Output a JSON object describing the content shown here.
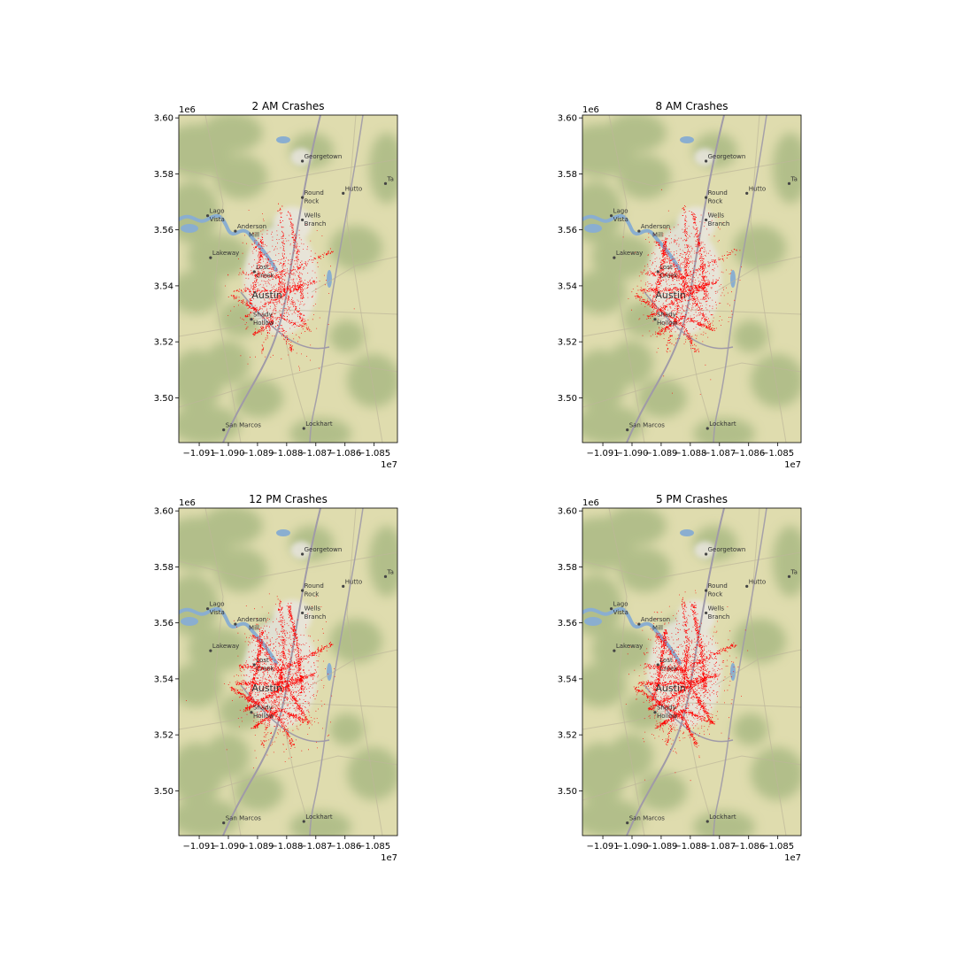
{
  "panels": [
    {
      "title": "2 AM Crashes",
      "density": 0.55
    },
    {
      "title": "8 AM Crashes",
      "density": 0.8
    },
    {
      "title": "12 PM Crashes",
      "density": 1.0
    },
    {
      "title": "5 PM Crashes",
      "density": 1.05
    }
  ],
  "x_axis": {
    "ticks": [
      "−1.091",
      "−1.090",
      "−1.089",
      "−1.088",
      "−1.087",
      "−1.086",
      "−1.085"
    ],
    "tick_values": [
      -10910000,
      -10900000,
      -10890000,
      -10880000,
      -10870000,
      -10860000,
      -10850000
    ],
    "range": [
      -10917000,
      -10842000
    ],
    "offset": "1e7"
  },
  "y_axis": {
    "ticks": [
      "3.60",
      "3.58",
      "3.56",
      "3.54",
      "3.52",
      "3.50"
    ],
    "tick_values": [
      3600000,
      3580000,
      3560000,
      3540000,
      3520000,
      3500000
    ],
    "range": [
      3484000,
      3601000
    ],
    "offset": "1e6"
  },
  "places": [
    {
      "name": "Georgetown",
      "x": -10874000,
      "y": 3585500
    },
    {
      "name": "Round",
      "x": -10874000,
      "y": 3572500
    },
    {
      "name": "Rock",
      "x": -10874000,
      "y": 3569500
    },
    {
      "name": "Hutto",
      "x": -10860000,
      "y": 3574000
    },
    {
      "name": "Ta",
      "x": -10845500,
      "y": 3577500
    },
    {
      "name": "Lago",
      "x": -10906500,
      "y": 3566000
    },
    {
      "name": "Vista",
      "x": -10906500,
      "y": 3563000
    },
    {
      "name": "Wells",
      "x": -10874000,
      "y": 3564500
    },
    {
      "name": "Branch",
      "x": -10874000,
      "y": 3561500
    },
    {
      "name": "Anderson",
      "x": -10897000,
      "y": 3560500
    },
    {
      "name": "Mill",
      "x": -10893000,
      "y": 3557500
    },
    {
      "name": "Lakeway",
      "x": -10905500,
      "y": 3551000
    },
    {
      "name": "Lost",
      "x": -10890500,
      "y": 3546000
    },
    {
      "name": "Creek",
      "x": -10890500,
      "y": 3543000
    },
    {
      "name": "Shady",
      "x": -10891500,
      "y": 3529000
    },
    {
      "name": "Hollow",
      "x": -10891500,
      "y": 3526000
    },
    {
      "name": "San Marcos",
      "x": -10901000,
      "y": 3489500
    },
    {
      "name": "Lockhart",
      "x": -10873500,
      "y": 3490000
    }
  ],
  "austin_label": "Austin",
  "colors": {
    "map_base": "#dfdcae",
    "hills": "#a3b57e",
    "water": "#8aaed0",
    "highway": "#a09aa8",
    "road": "#bdb79a",
    "urban": "#e9e6e0",
    "crash": "#ff0000"
  }
}
